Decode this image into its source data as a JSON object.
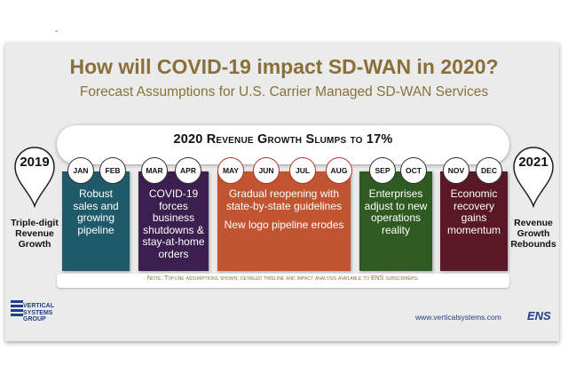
{
  "header": {
    "dash": "-",
    "title": "How will COVID-19 impact SD-WAN in 2020?",
    "subtitle": "Forecast Assumptions for U.S. Carrier Managed SD-WAN Services"
  },
  "banner": {
    "text": "2020 Revenue Growth Slumps to 17%"
  },
  "left_pin": {
    "year": "2019",
    "label_lines": [
      "Triple-digit",
      "Revenue",
      "Growth"
    ]
  },
  "right_pin": {
    "year": "2021",
    "label_lines": [
      "Revenue",
      "Growth",
      "Rebounds"
    ]
  },
  "months": [
    "JAN",
    "FEB",
    "MAR",
    "APR",
    "MAY",
    "JUN",
    "JUL",
    "AUG",
    "SEP",
    "OCT",
    "NOV",
    "DEC"
  ],
  "blocks": [
    {
      "color": "#1f5a6a",
      "lines": [
        "Robust",
        "sales and",
        "growing",
        "pipeline"
      ]
    },
    {
      "color": "#3b1f4e",
      "lines": [
        "COVID-19",
        "forces",
        "business",
        "shutdowns &",
        "stay-at-home",
        "orders"
      ]
    },
    {
      "color": "#c15532",
      "lines": [
        "Gradual reopening with",
        "state-by-state guidelines"
      ],
      "lines2": [
        "New logo pipeline erodes"
      ]
    },
    {
      "color": "#2f5b22",
      "lines": [
        "Enterprises",
        "adjust to new",
        "operations",
        "reality"
      ]
    },
    {
      "color": "#5a1726",
      "lines": [
        "Economic",
        "recovery",
        "gains",
        "momentum"
      ]
    }
  ],
  "note": "Note: Topline assumptions shown; detailed timeline and impact analysis available to ENS subscribers.",
  "footer": {
    "logo_lines": [
      "VERTICAL",
      "SYSTEMS",
      "GROUP"
    ],
    "url": "www.verticalsystems.com",
    "badge": "ENS"
  },
  "colors": {
    "title": "#8a7038",
    "frame": "#ebebeb"
  }
}
